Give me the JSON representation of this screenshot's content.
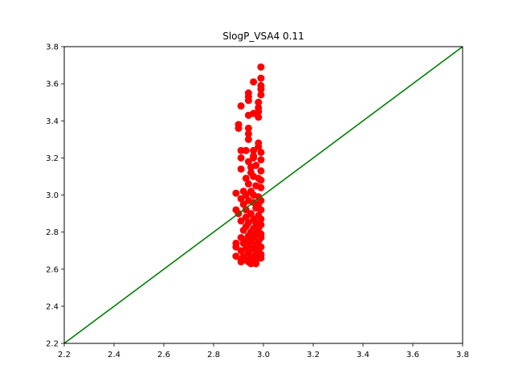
{
  "chart_data": {
    "type": "scatter",
    "title": "SlogP_VSA4 0.11",
    "xlabel": "",
    "ylabel": "",
    "xlim": [
      2.2,
      3.8
    ],
    "ylim": [
      2.2,
      3.8
    ],
    "x_ticks": [
      "2.2",
      "2.4",
      "2.6",
      "2.8",
      "3.0",
      "3.2",
      "3.4",
      "3.6",
      "3.8"
    ],
    "y_ticks": [
      "2.2",
      "2.4",
      "2.6",
      "2.8",
      "3.0",
      "3.2",
      "3.4",
      "3.6",
      "3.8"
    ],
    "grid": false,
    "series": [
      {
        "color": "#ff0000",
        "marker": "circle",
        "points": [
          [
            2.99,
            3.69
          ],
          [
            2.99,
            3.63
          ],
          [
            2.99,
            3.59
          ],
          [
            2.99,
            3.57
          ],
          [
            2.99,
            3.54
          ],
          [
            2.96,
            3.61
          ],
          [
            2.94,
            3.55
          ],
          [
            2.94,
            3.53
          ],
          [
            2.94,
            3.51
          ],
          [
            2.98,
            3.5
          ],
          [
            2.98,
            3.47
          ],
          [
            2.98,
            3.45
          ],
          [
            2.98,
            3.42
          ],
          [
            2.91,
            3.48
          ],
          [
            2.94,
            3.43
          ],
          [
            2.96,
            3.44
          ],
          [
            2.9,
            3.38
          ],
          [
            2.9,
            3.36
          ],
          [
            2.94,
            3.36
          ],
          [
            2.94,
            3.33
          ],
          [
            2.94,
            3.3
          ],
          [
            2.98,
            3.28
          ],
          [
            2.98,
            3.26
          ],
          [
            2.96,
            3.24
          ],
          [
            2.96,
            3.21
          ],
          [
            2.91,
            3.24
          ],
          [
            2.93,
            3.24
          ],
          [
            2.91,
            3.2
          ],
          [
            2.96,
            3.2
          ],
          [
            2.99,
            3.23
          ],
          [
            2.99,
            3.19
          ],
          [
            2.91,
            3.14
          ],
          [
            2.94,
            3.18
          ],
          [
            2.95,
            3.15
          ],
          [
            2.97,
            3.16
          ],
          [
            2.99,
            3.13
          ],
          [
            2.95,
            3.12
          ],
          [
            2.96,
            3.1
          ],
          [
            2.98,
            3.09
          ],
          [
            2.99,
            3.08
          ],
          [
            2.93,
            3.09
          ],
          [
            2.94,
            3.06
          ],
          [
            2.97,
            3.05
          ],
          [
            2.99,
            3.04
          ],
          [
            2.92,
            3.02
          ],
          [
            2.95,
            3.02
          ],
          [
            2.96,
            3.0
          ],
          [
            2.98,
            2.99
          ],
          [
            2.99,
            2.97
          ],
          [
            2.89,
            3.01
          ],
          [
            2.93,
            3.0
          ],
          [
            2.91,
            2.98
          ],
          [
            2.94,
            2.97
          ],
          [
            2.96,
            2.96
          ],
          [
            2.98,
            2.95
          ],
          [
            2.92,
            2.95
          ],
          [
            2.97,
            2.93
          ],
          [
            2.99,
            2.92
          ],
          [
            2.89,
            2.92
          ],
          [
            2.9,
            2.9
          ],
          [
            2.93,
            2.92
          ],
          [
            2.95,
            2.9
          ],
          [
            2.98,
            2.89
          ],
          [
            2.93,
            2.88
          ],
          [
            2.96,
            2.87
          ],
          [
            2.99,
            2.87
          ],
          [
            2.91,
            2.86
          ],
          [
            2.94,
            2.85
          ],
          [
            2.97,
            2.85
          ],
          [
            2.99,
            2.84
          ],
          [
            2.93,
            2.83
          ],
          [
            2.96,
            2.82
          ],
          [
            2.98,
            2.82
          ],
          [
            2.92,
            2.81
          ],
          [
            2.95,
            2.8
          ],
          [
            2.97,
            2.79
          ],
          [
            2.99,
            2.79
          ],
          [
            2.94,
            2.78
          ],
          [
            2.96,
            2.77
          ],
          [
            2.99,
            2.77
          ],
          [
            2.91,
            2.77
          ],
          [
            2.93,
            2.76
          ],
          [
            2.95,
            2.75
          ],
          [
            2.98,
            2.75
          ],
          [
            2.92,
            2.74
          ],
          [
            2.94,
            2.73
          ],
          [
            2.97,
            2.73
          ],
          [
            2.99,
            2.72
          ],
          [
            2.89,
            2.74
          ],
          [
            2.89,
            2.72
          ],
          [
            2.93,
            2.71
          ],
          [
            2.96,
            2.71
          ],
          [
            2.98,
            2.7
          ],
          [
            2.91,
            2.7
          ],
          [
            2.94,
            2.69
          ],
          [
            2.97,
            2.68
          ],
          [
            2.99,
            2.68
          ],
          [
            2.89,
            2.67
          ],
          [
            2.92,
            2.67
          ],
          [
            2.95,
            2.67
          ],
          [
            2.98,
            2.66
          ],
          [
            2.91,
            2.65
          ],
          [
            2.93,
            2.65
          ],
          [
            2.96,
            2.65
          ],
          [
            2.99,
            2.66
          ],
          [
            2.91,
            2.64
          ],
          [
            2.94,
            2.64
          ],
          [
            2.95,
            2.63
          ],
          [
            2.97,
            2.63
          ],
          [
            2.96,
            2.64
          ]
        ]
      },
      {
        "color": "#008000",
        "marker": "line",
        "points": [
          [
            2.2,
            2.2
          ],
          [
            3.8,
            3.8
          ]
        ]
      }
    ]
  }
}
